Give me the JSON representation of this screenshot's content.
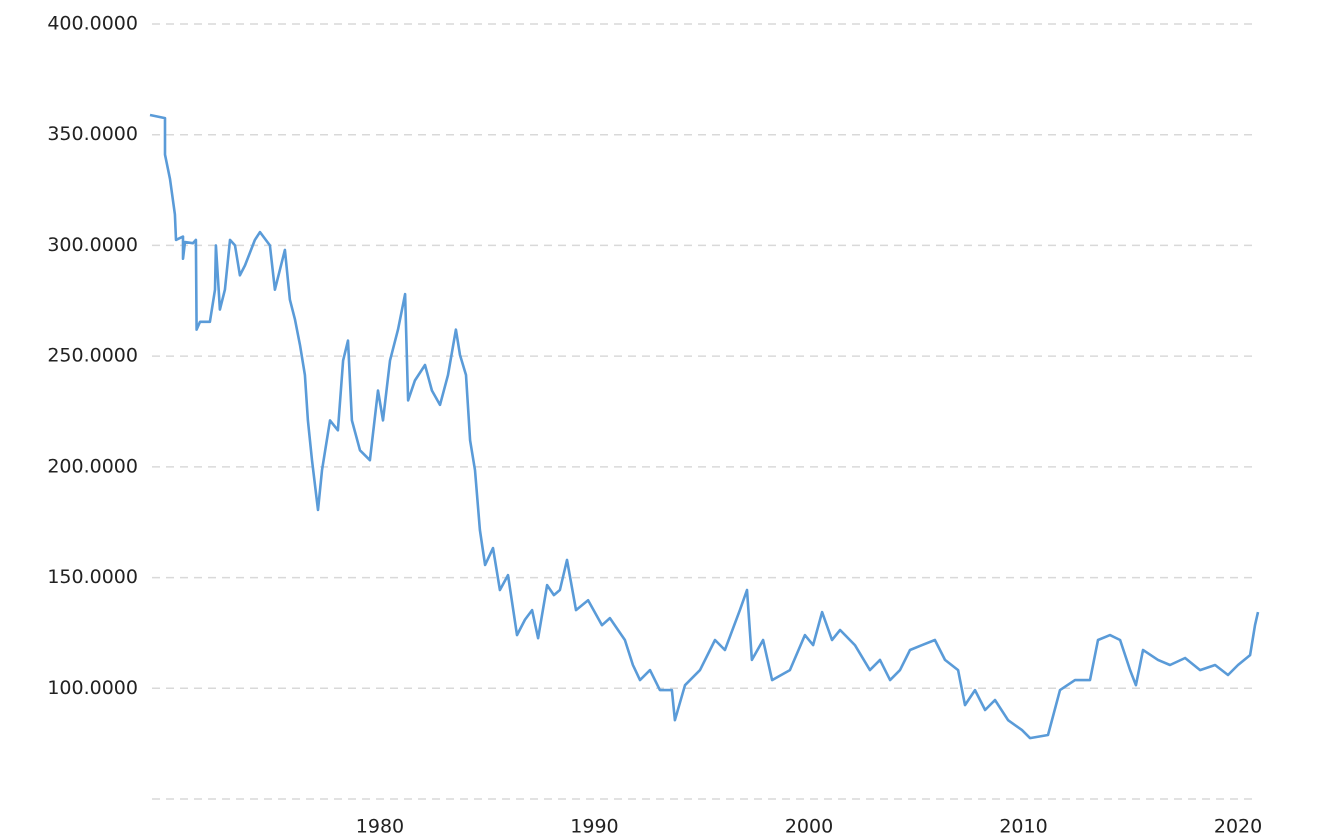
{
  "chart_data": {
    "type": "line",
    "x": [
      1969.28,
      1969.98,
      1969.98,
      1970.21,
      1970.44,
      1970.49,
      1970.82,
      1970.82,
      1970.91,
      1971.28,
      1971.42,
      1971.45,
      1971.61,
      1972.07,
      1972.31,
      1972.35,
      1972.54,
      1972.77,
      1973.01,
      1973.24,
      1973.47,
      1973.71,
      1974.17,
      1974.41,
      1974.87,
      1975.1,
      1975.57,
      1975.8,
      1976.04,
      1976.27,
      1976.5,
      1976.64,
      1976.83,
      1977.11,
      1977.3,
      1977.67,
      1978.04,
      1978.28,
      1978.51,
      1978.69,
      1979.07,
      1979.53,
      1979.91,
      1980.14,
      1980.47,
      1980.84,
      1981.17,
      1981.31,
      1981.63,
      1982.1,
      1982.42,
      1982.8,
      1983.17,
      1983.54,
      1983.73,
      1984.01,
      1984.2,
      1984.43,
      1984.66,
      1984.9,
      1985.27,
      1985.59,
      1985.97,
      1986.39,
      1986.76,
      1987.09,
      1987.37,
      1987.79,
      1988.11,
      1988.39,
      1988.72,
      1989.14,
      1989.7,
      1990.35,
      1990.72,
      1991.42,
      1991.79,
      1992.12,
      1992.59,
      1993.05,
      1993.61,
      1993.75,
      1994.22,
      1994.92,
      1995.62,
      1996.08,
      1996.78,
      1997.11,
      1997.34,
      1997.86,
      1998.28,
      1999.11,
      1999.81,
      2000.19,
      2000.61,
      2001.07,
      2001.45,
      2002.14,
      2002.84,
      2003.31,
      2003.78,
      2004.24,
      2004.71,
      2005.27,
      2005.87,
      2006.34,
      2006.95,
      2007.27,
      2007.74,
      2008.21,
      2008.67,
      2009.28,
      2009.93,
      2010.3,
      2011.14,
      2011.7,
      2012.4,
      2013.1,
      2013.47,
      2014.03,
      2014.5,
      2014.97,
      2015.24,
      2015.57,
      2016.27,
      2016.83,
      2017.53,
      2018.23,
      2018.93,
      2019.53,
      2020.0,
      2020.56,
      2020.79,
      2020.93
    ],
    "series": [
      {
        "color": "#5a9bd8",
        "values": [
          358.9,
          357.5,
          341,
          330,
          314,
          302.5,
          304,
          294,
          301.5,
          301,
          302.5,
          262,
          265.5,
          265.5,
          280,
          300,
          271,
          280,
          302.5,
          300,
          286.5,
          291,
          302.5,
          306,
          300,
          280,
          298,
          275.5,
          266.5,
          255,
          241.5,
          221,
          203,
          180.5,
          198.5,
          221,
          216.5,
          248,
          257,
          221,
          207.5,
          203,
          234.5,
          221,
          248,
          262,
          278,
          230,
          239,
          246,
          234.5,
          228,
          241.5,
          262,
          250.5,
          241.5,
          212,
          198.5,
          171.5,
          155.7,
          163.3,
          144.4,
          151.1,
          124,
          131,
          135.3,
          122.6,
          146.6,
          142.1,
          144.4,
          158,
          135.3,
          139.8,
          128.5,
          131.7,
          121.8,
          110.5,
          103.7,
          108.2,
          99.2,
          99.2,
          85.6,
          101.4,
          108.2,
          121.8,
          117.3,
          135.3,
          144.4,
          112.8,
          121.8,
          103.7,
          108.2,
          124,
          119.5,
          134.4,
          121.8,
          126.3,
          119.5,
          108.2,
          112.8,
          103.7,
          108.2,
          117.3,
          119.5,
          121.8,
          112.8,
          108.2,
          92.4,
          99.2,
          90.2,
          94.7,
          85.6,
          81.1,
          77.5,
          78.9,
          99.2,
          103.7,
          103.7,
          121.8,
          124,
          121.8,
          108.2,
          101.4,
          117.3,
          112.8,
          110.5,
          113.7,
          108.2,
          110.5,
          106,
          110.5,
          115,
          128.5,
          134.4
        ]
      }
    ],
    "xlim": [
      1969.28,
      2020.93
    ],
    "xticks": [
      1980,
      1990,
      2000,
      2010,
      2020
    ],
    "ylim": [
      50,
      400
    ],
    "yticks": [
      {
        "value": 100,
        "label": "100.0000"
      },
      {
        "value": 150,
        "label": "150.0000"
      },
      {
        "value": 200,
        "label": "200.0000"
      },
      {
        "value": 250,
        "label": "250.0000"
      },
      {
        "value": 300,
        "label": "300.0000"
      },
      {
        "value": 350,
        "label": "350.0000"
      },
      {
        "value": 400,
        "label": "400.0000"
      }
    ],
    "grid": true
  }
}
